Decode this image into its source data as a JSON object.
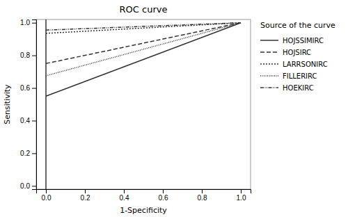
{
  "chart_data": {
    "type": "line",
    "title": "ROC curve",
    "x_label": "1-Specificity",
    "y_label": "Sensitivity",
    "xlim": [
      -0.05,
      1.05
    ],
    "ylim": [
      -0.02,
      1.02
    ],
    "xticks": [
      {
        "value": 0.0,
        "label": "0.0"
      },
      0.2,
      0.4,
      0.6,
      0.8,
      {
        "value": 1.0,
        "label": "1.0"
      }
    ],
    "yticks": [
      {
        "value": 0.0,
        "label": "0.0"
      },
      0.2,
      0.4,
      0.6,
      0.8,
      {
        "value": 1.0,
        "label": "1.0"
      }
    ],
    "legend": "right",
    "legend_title": "Source of the curve",
    "series": [
      {
        "name": "HOJSSIMIRC",
        "color": "#333333",
        "line_style": "solid",
        "x": [
          0.0,
          1.0
        ],
        "values": [
          0.55,
          1.0
        ]
      },
      {
        "name": "HOJSIRC",
        "color": "#333333",
        "line_style": "dashed",
        "x": [
          0.0,
          1.0
        ],
        "values": [
          0.75,
          1.0
        ]
      },
      {
        "name": "LARRSONIRC",
        "color": "#333333",
        "line_style": "dotted_coarse",
        "x": [
          0.0,
          1.0
        ],
        "values": [
          0.935,
          1.0
        ]
      },
      {
        "name": "FILLERIRC",
        "color": "#333333",
        "line_style": "dotted_fine",
        "x": [
          0.0,
          1.0
        ],
        "values": [
          0.675,
          1.0
        ]
      },
      {
        "name": "HOEKIRC",
        "color": "#333333",
        "line_style": "dashdotdot",
        "x": [
          0.0,
          1.0
        ],
        "values": [
          0.955,
          1.0
        ]
      }
    ],
    "reference_lines": {
      "x": [
        0.0
      ]
    }
  }
}
